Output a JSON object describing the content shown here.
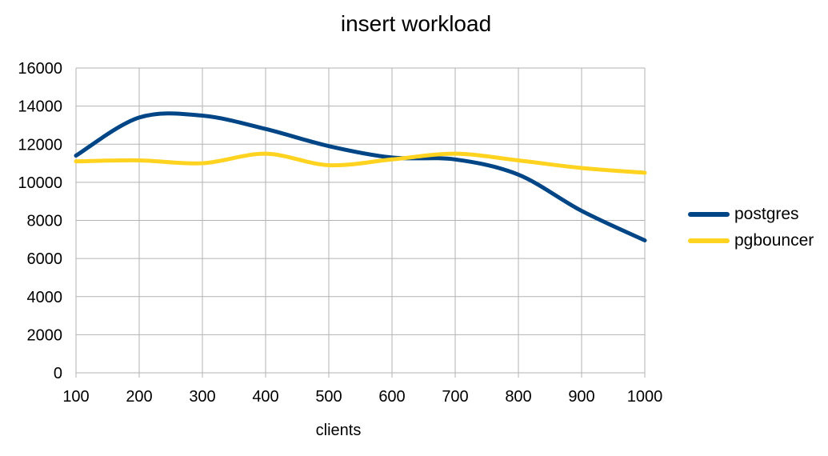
{
  "chart_data": {
    "type": "line",
    "title": "insert workload",
    "xlabel": "clients",
    "ylabel": "",
    "x": [
      100,
      200,
      300,
      400,
      500,
      600,
      700,
      800,
      900,
      1000
    ],
    "xlim": [
      100,
      1000
    ],
    "ylim": [
      0,
      16000
    ],
    "xticks": [
      "100",
      "200",
      "300",
      "400",
      "500",
      "600",
      "700",
      "800",
      "900",
      "1000"
    ],
    "yticks": [
      "0",
      "2000",
      "4000",
      "6000",
      "8000",
      "10000",
      "12000",
      "14000",
      "16000"
    ],
    "grid": true,
    "legend_position": "right",
    "smooth": true,
    "series": [
      {
        "name": "postgres",
        "color": "#004586",
        "values": [
          11400,
          13400,
          13500,
          12800,
          11900,
          11300,
          11200,
          10400,
          8500,
          6950
        ]
      },
      {
        "name": "pgbouncer",
        "color": "#ffd320",
        "values": [
          11100,
          11150,
          11000,
          11500,
          10900,
          11200,
          11500,
          11150,
          10750,
          10500
        ]
      }
    ]
  }
}
